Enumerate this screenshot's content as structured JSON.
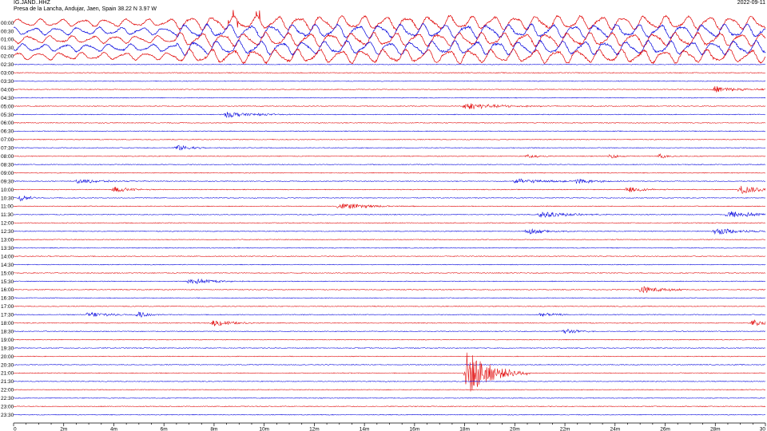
{
  "header": {
    "station": "IG.JAND..HHZ",
    "location": "Presa de la Lancha, Andujar, Jaen, Spain  38.22 N 3.97 W",
    "date": "2022-09-11"
  },
  "chart_data": {
    "type": "line",
    "description": "helicorder",
    "rows": [
      "00:00",
      "00:30",
      "01:00",
      "01:30",
      "02:00",
      "02:30",
      "03:00",
      "03:30",
      "04:00",
      "04:30",
      "05:00",
      "05:30",
      "06:00",
      "06:30",
      "07:00",
      "07:30",
      "08:00",
      "08:30",
      "09:00",
      "09:30",
      "10:00",
      "10:30",
      "11:00",
      "11:30",
      "12:00",
      "12:30",
      "13:00",
      "13:30",
      "14:00",
      "14:30",
      "15:00",
      "15:30",
      "16:00",
      "16:30",
      "17:00",
      "17:30",
      "18:00",
      "18:30",
      "19:00",
      "19:30",
      "20:00",
      "20:30",
      "21:00",
      "21:30",
      "22:00",
      "22:30",
      "23:00",
      "23:30"
    ],
    "row_colors": [
      "#e00000",
      "#0000dd"
    ],
    "x_ticks": [
      "0",
      "2m",
      "4m",
      "6m",
      "8m",
      "10m",
      "12m",
      "14m",
      "16m",
      "18m",
      "20m",
      "22m",
      "24m",
      "26m",
      "28m",
      "30"
    ],
    "xlim": [
      0,
      30
    ],
    "x_unit": "minutes",
    "noisy_rows": {
      "start_row": 0,
      "end_row": 4,
      "big_amplitude_from_minute": 6.5
    },
    "events": [
      {
        "row": "04:00",
        "minute": 28.0,
        "amplitude": 0.35,
        "duration": 2.5
      },
      {
        "row": "05:00",
        "minute": 18.0,
        "amplitude": 0.35,
        "duration": 4.0
      },
      {
        "row": "05:30",
        "minute": 8.5,
        "amplitude": 0.3,
        "duration": 3.0
      },
      {
        "row": "07:30",
        "minute": 6.5,
        "amplitude": 0.3,
        "duration": 2.0
      },
      {
        "row": "08:00",
        "minute": 20.5,
        "amplitude": 0.2,
        "duration": 1.5
      },
      {
        "row": "08:00",
        "minute": 23.8,
        "amplitude": 0.2,
        "duration": 1.5
      },
      {
        "row": "08:00",
        "minute": 25.8,
        "amplitude": 0.25,
        "duration": 1.0
      },
      {
        "row": "09:30",
        "minute": 2.5,
        "amplitude": 0.25,
        "duration": 3.0
      },
      {
        "row": "09:30",
        "minute": 20.0,
        "amplitude": 0.25,
        "duration": 4.0
      },
      {
        "row": "09:30",
        "minute": 22.5,
        "amplitude": 0.3,
        "duration": 2.0
      },
      {
        "row": "10:00",
        "minute": 4.0,
        "amplitude": 0.3,
        "duration": 2.0
      },
      {
        "row": "10:00",
        "minute": 24.5,
        "amplitude": 0.3,
        "duration": 2.0
      },
      {
        "row": "10:00",
        "minute": 29.0,
        "amplitude": 0.45,
        "duration": 2.5
      },
      {
        "row": "10:30",
        "minute": 0.3,
        "amplitude": 0.35,
        "duration": 1.0
      },
      {
        "row": "11:00",
        "minute": 13.0,
        "amplitude": 0.35,
        "duration": 3.0
      },
      {
        "row": "11:30",
        "minute": 21.0,
        "amplitude": 0.35,
        "duration": 3.0
      },
      {
        "row": "11:30",
        "minute": 28.5,
        "amplitude": 0.4,
        "duration": 3.0
      },
      {
        "row": "12:30",
        "minute": 20.5,
        "amplitude": 0.3,
        "duration": 2.5
      },
      {
        "row": "12:30",
        "minute": 28.0,
        "amplitude": 0.35,
        "duration": 3.0
      },
      {
        "row": "15:30",
        "minute": 7.0,
        "amplitude": 0.35,
        "duration": 2.5
      },
      {
        "row": "16:00",
        "minute": 25.0,
        "amplitude": 0.35,
        "duration": 3.0
      },
      {
        "row": "17:30",
        "minute": 3.0,
        "amplitude": 0.3,
        "duration": 2.5
      },
      {
        "row": "17:30",
        "minute": 5.0,
        "amplitude": 0.35,
        "duration": 1.0
      },
      {
        "row": "17:30",
        "minute": 21.0,
        "amplitude": 0.2,
        "duration": 2.0
      },
      {
        "row": "18:00",
        "minute": 8.0,
        "amplitude": 0.35,
        "duration": 2.0
      },
      {
        "row": "18:00",
        "minute": 29.5,
        "amplitude": 0.35,
        "duration": 1.5
      },
      {
        "row": "18:30",
        "minute": 22.0,
        "amplitude": 0.3,
        "duration": 1.5
      },
      {
        "row": "21:00",
        "minute": 18.1,
        "amplitude": 2.4,
        "duration": 2.5
      }
    ]
  }
}
